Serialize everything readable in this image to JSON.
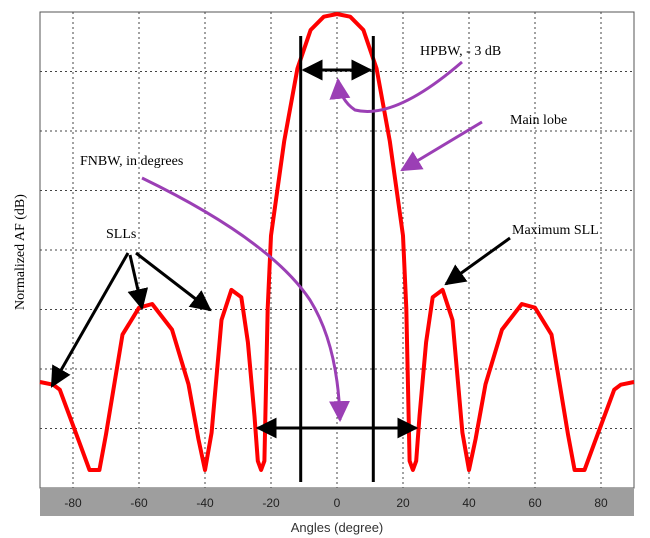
{
  "chart_data": {
    "type": "line",
    "title": "",
    "xlabel": "Angles (degree)",
    "ylabel": "Normalized AF (dB)",
    "xlim": [
      -90,
      90
    ],
    "x_ticks": [
      -80,
      -60,
      -40,
      -20,
      0,
      20,
      40,
      60,
      80
    ],
    "grid": true,
    "series": [
      {
        "color": "#ff0000",
        "x": [
          -90,
          -86,
          -84,
          -82,
          -78,
          -75,
          -72,
          -70,
          -65,
          -60,
          -56,
          -50,
          -45,
          -42,
          -40,
          -38,
          -35,
          -32,
          -29,
          -27,
          -25,
          -24,
          -23,
          -22,
          -21,
          -20,
          -16,
          -12,
          -8,
          -4,
          0,
          4,
          8,
          12,
          16,
          20,
          21,
          22,
          23,
          24,
          25,
          27,
          29,
          32,
          35,
          38,
          40,
          42,
          45,
          50,
          56,
          60,
          65,
          70,
          72,
          75,
          78,
          82,
          84,
          86,
          90
        ],
        "y": [
          0.193,
          0.187,
          0.176,
          0.137,
          0.059,
          0,
          0,
          0.078,
          0.297,
          0.356,
          0.364,
          0.308,
          0.188,
          0.068,
          0,
          0.082,
          0.329,
          0.395,
          0.379,
          0.28,
          0.118,
          0.02,
          0,
          0.02,
          0.355,
          0.514,
          0.721,
          0.88,
          0.965,
          0.994,
          1.0,
          0.994,
          0.965,
          0.88,
          0.721,
          0.514,
          0.355,
          0.02,
          0,
          0.02,
          0.118,
          0.28,
          0.379,
          0.395,
          0.329,
          0.082,
          0,
          0.068,
          0.188,
          0.308,
          0.364,
          0.356,
          0.297,
          0.078,
          0,
          0,
          0.059,
          0.137,
          0.176,
          0.187,
          0.193
        ]
      }
    ],
    "markers": {
      "hpbw_lines_x": [
        -11,
        11
      ],
      "fnbw_x": [
        -24,
        24
      ]
    },
    "annotations": [
      {
        "text": "HPBW, - 3 dB",
        "target": "hpbw"
      },
      {
        "text": "Main lobe",
        "target": "main-lobe"
      },
      {
        "text": "FNBW, in degrees",
        "target": "fnbw"
      },
      {
        "text": "SLLs",
        "target": "side-lobes"
      },
      {
        "text": "Maximum SLL",
        "target": "max-sll"
      }
    ],
    "colors": {
      "curve": "#ff0000",
      "arrow_purple": "#9b3fb5",
      "arrow_black": "#000000",
      "xaxis_band": "#9e9e9e"
    }
  }
}
